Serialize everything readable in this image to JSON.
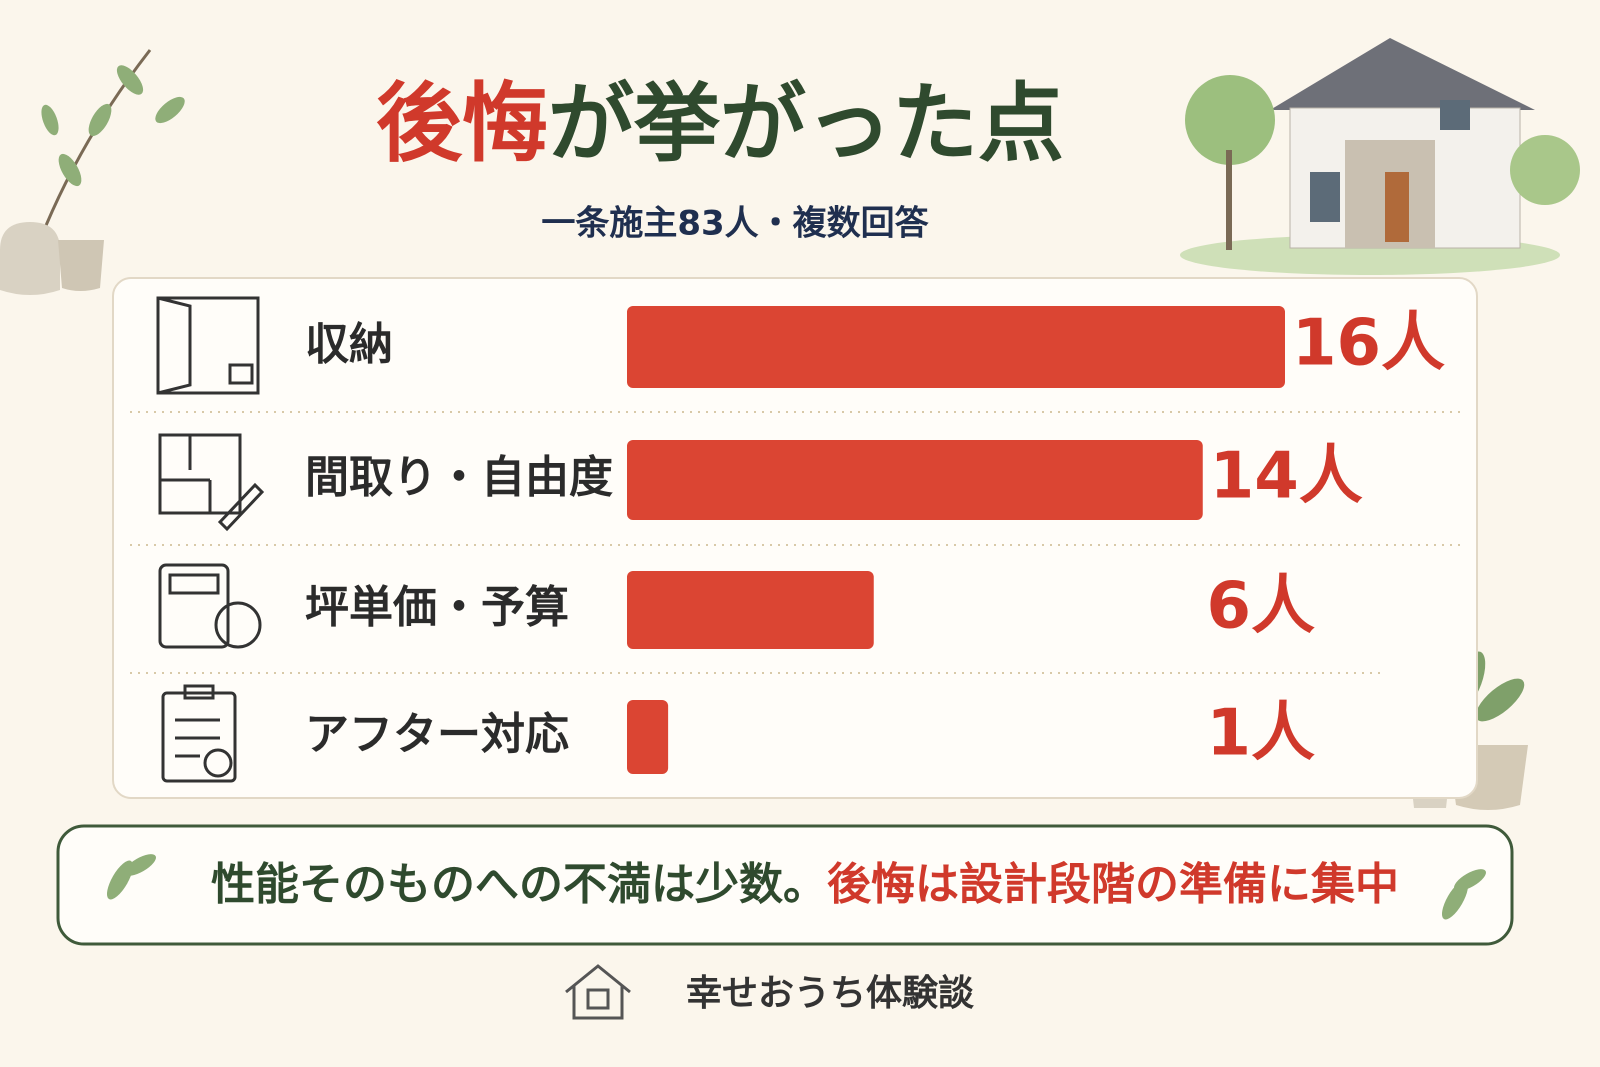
{
  "chart_data": {
    "type": "hbar",
    "title": {
      "highlight": "後悔",
      "rest": "が挙がった点"
    },
    "subtitle": "一条施主83人・複数回答",
    "categories": [
      "収納",
      "間取り・自由度",
      "坪単価・予算",
      "アフター対応"
    ],
    "values": [
      16,
      14,
      6,
      1
    ],
    "value_labels": [
      "16人",
      "14人",
      "6人",
      "1人"
    ],
    "color": "#db4533",
    "xlim": [
      0,
      16
    ],
    "conclusion": {
      "neutral": "性能そのものへの不満は少数。",
      "highlight": "後悔は設計段階の準備に集中"
    },
    "brand": "幸せおうち体験談"
  }
}
